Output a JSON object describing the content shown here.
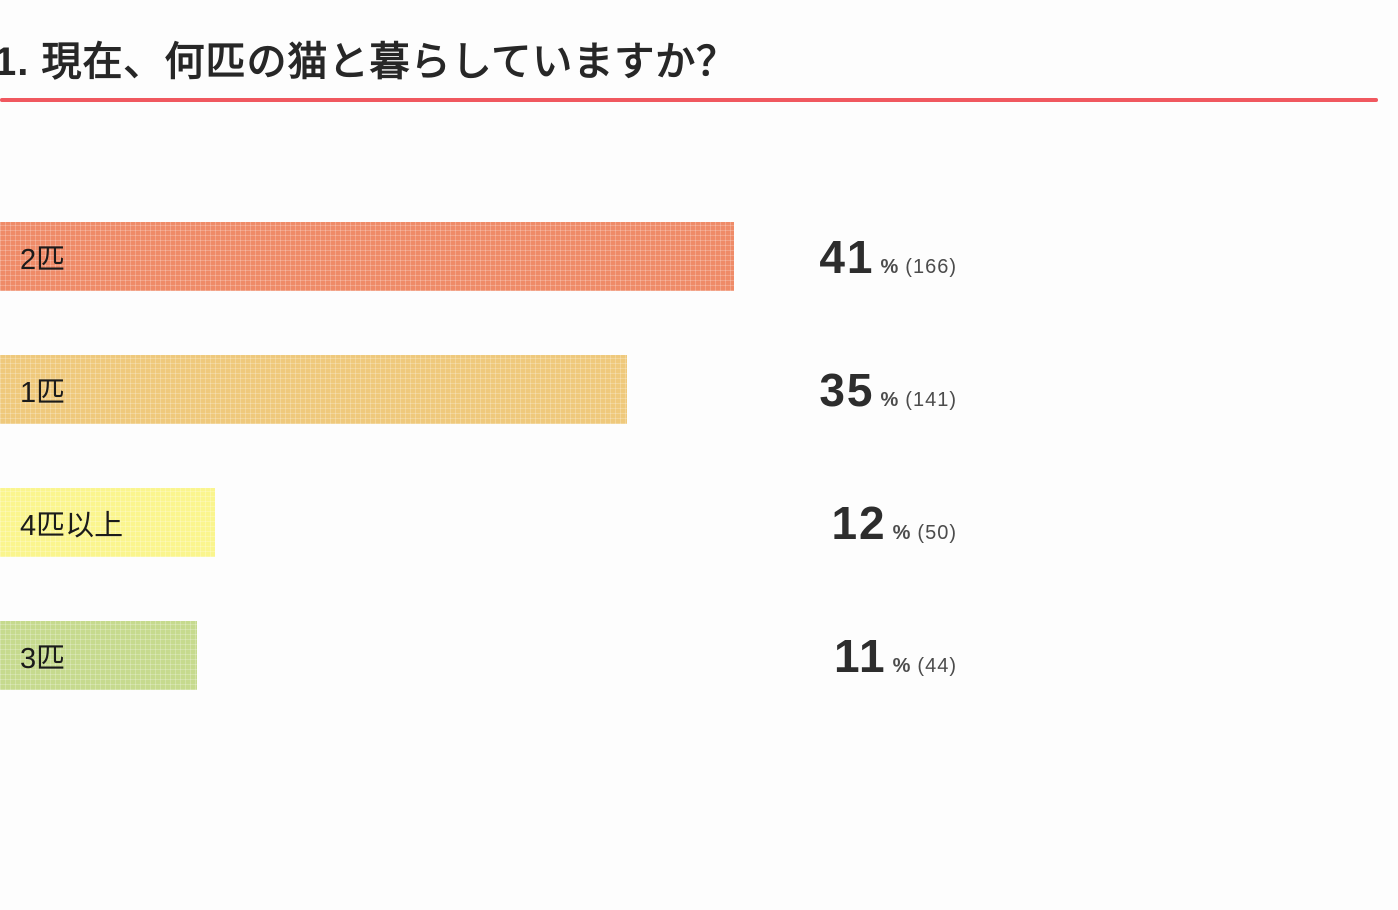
{
  "page": {
    "background_color": "#fdfdfd",
    "accent_line_color": "#f0585f"
  },
  "chart_data": {
    "type": "bar",
    "orientation": "horizontal",
    "title": "1. 現在、何匹の猫と暮らしていますか？",
    "categories": [
      "2匹",
      "1匹",
      "4匹以上",
      "3匹"
    ],
    "values": [
      41,
      35,
      12,
      11
    ],
    "counts": [
      166,
      141,
      50,
      44
    ],
    "count_labels": [
      "(166)",
      "(141)",
      "(50)",
      "(44)"
    ],
    "unit": "%",
    "bar_colors": [
      "#ef8b68",
      "#efc97c",
      "#faf58e",
      "#c6da8e"
    ],
    "legend": "none",
    "grid": "none",
    "value_labels_position": "right-of-bars"
  }
}
